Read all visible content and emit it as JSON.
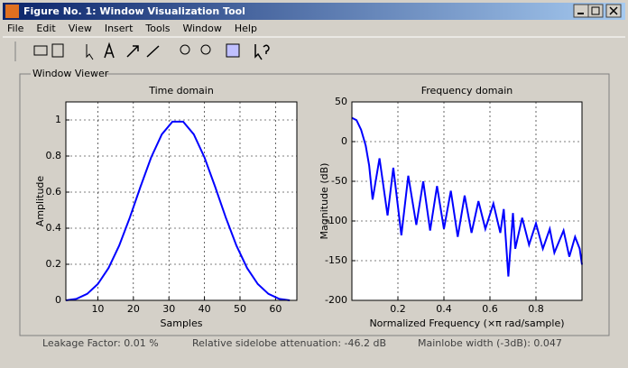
{
  "window": {
    "title": "Figure No. 1: Window Visualization Tool",
    "menu": [
      "File",
      "Edit",
      "View",
      "Insert",
      "Tools",
      "Window",
      "Help"
    ],
    "panel_title": "Window Viewer",
    "status": [
      "Leakage Factor: 0.01 %",
      "Relative sidelobe attenuation: -46.2 dB",
      "Mainlobe width (-3dB): 0.047"
    ]
  },
  "chart_data": [
    {
      "type": "line",
      "title": "Time domain",
      "x_label": "Samples",
      "y_label": "Amplitude",
      "color": "#0000ff",
      "grid": true,
      "x": [
        1,
        4,
        7,
        10,
        13,
        16,
        19,
        22,
        25,
        28,
        31,
        34,
        37,
        40,
        43,
        46,
        49,
        52,
        55,
        58,
        61,
        64
      ],
      "values": [
        0,
        0.0083,
        0.036,
        0.0905,
        0.1788,
        0.3035,
        0.4591,
        0.63,
        0.7925,
        0.9204,
        0.9908,
        0.9908,
        0.9204,
        0.7925,
        0.63,
        0.4591,
        0.3035,
        0.1788,
        0.0905,
        0.036,
        0.0083,
        0
      ],
      "xlim": [
        1,
        66
      ],
      "ylim": [
        0,
        1.1
      ],
      "xticks": [
        10,
        20,
        30,
        40,
        50,
        60
      ],
      "yticks": [
        0,
        0.2,
        0.4,
        0.6,
        0.8,
        1
      ]
    },
    {
      "type": "line",
      "title": "Frequency domain",
      "x_label": "Normalized Frequency  (×π rad/sample)",
      "y_label": "Magnitude (dB)",
      "color": "#0000ff",
      "grid": true,
      "x": [
        0,
        0.02,
        0.04,
        0.06,
        0.075,
        0.09,
        0.12,
        0.155,
        0.18,
        0.215,
        0.245,
        0.28,
        0.31,
        0.34,
        0.37,
        0.4,
        0.43,
        0.46,
        0.49,
        0.52,
        0.55,
        0.58,
        0.615,
        0.645,
        0.66,
        0.68,
        0.7,
        0.71,
        0.74,
        0.77,
        0.8,
        0.83,
        0.86,
        0.88,
        0.92,
        0.945,
        0.97,
        0.99,
        1
      ],
      "values": [
        30,
        27,
        15,
        -5,
        -30,
        -73,
        -21,
        -93,
        -33,
        -118,
        -43,
        -105,
        -50,
        -112,
        -56,
        -110,
        -62,
        -120,
        -68,
        -115,
        -75,
        -110,
        -78,
        -115,
        -85,
        -170,
        -90,
        -135,
        -96,
        -130,
        -103,
        -135,
        -110,
        -140,
        -112,
        -145,
        -120,
        -135,
        -155
      ],
      "xlim": [
        0,
        1
      ],
      "ylim": [
        -200,
        50
      ],
      "xticks": [
        0.2,
        0.4,
        0.6,
        0.8
      ],
      "yticks": [
        -200,
        -150,
        -100,
        -50,
        0,
        50
      ]
    }
  ]
}
